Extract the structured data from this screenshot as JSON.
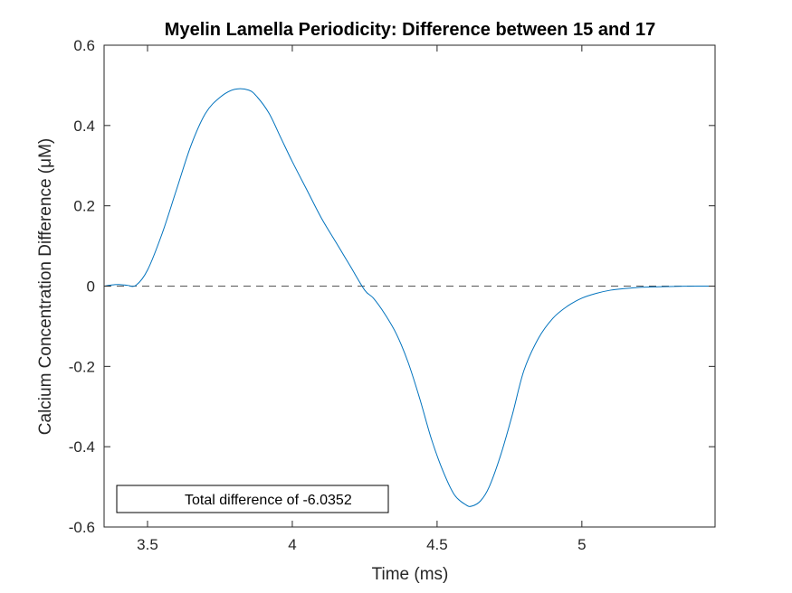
{
  "chart_data": {
    "type": "line",
    "title": "Myelin Lamella Periodicity: Difference between 15 and 17",
    "xlabel": "Time (ms)",
    "ylabel": "Calcium Concentration Difference (μM)",
    "xlim": [
      3.35,
      5.46
    ],
    "ylim": [
      -0.6,
      0.6
    ],
    "xticks": [
      3.5,
      4,
      4.5,
      5
    ],
    "xtick_labels": [
      "3.5",
      "4",
      "4.5",
      "5"
    ],
    "yticks": [
      -0.6,
      -0.4,
      -0.2,
      0,
      0.2,
      0.4,
      0.6
    ],
    "ytick_labels": [
      "-0.6",
      "-0.4",
      "-0.2",
      "0",
      "0.2",
      "0.4",
      "0.6"
    ],
    "grid": false,
    "legend": {
      "text": "Total difference of -6.0352",
      "placement": "bottom-left"
    },
    "reference_line": {
      "y": 0,
      "style": "dashed",
      "color": "#555555"
    },
    "series": [
      {
        "color": "#0072BD",
        "x": [
          3.35,
          3.38,
          3.4,
          3.43,
          3.46,
          3.5,
          3.55,
          3.6,
          3.65,
          3.7,
          3.75,
          3.8,
          3.85,
          3.88,
          3.92,
          3.96,
          4.0,
          4.05,
          4.1,
          4.15,
          4.2,
          4.25,
          4.28,
          4.32,
          4.36,
          4.4,
          4.44,
          4.48,
          4.52,
          4.56,
          4.6,
          4.62,
          4.65,
          4.68,
          4.72,
          4.76,
          4.8,
          4.85,
          4.9,
          4.95,
          5.0,
          5.05,
          5.1,
          5.15,
          5.2,
          5.25,
          5.3,
          5.4,
          5.46
        ],
        "y": [
          0.0,
          0.003,
          0.004,
          0.002,
          0.002,
          0.04,
          0.13,
          0.24,
          0.35,
          0.43,
          0.47,
          0.49,
          0.488,
          0.47,
          0.43,
          0.37,
          0.31,
          0.24,
          0.17,
          0.11,
          0.05,
          -0.01,
          -0.03,
          -0.07,
          -0.12,
          -0.19,
          -0.28,
          -0.38,
          -0.46,
          -0.52,
          -0.545,
          -0.548,
          -0.535,
          -0.5,
          -0.42,
          -0.32,
          -0.21,
          -0.13,
          -0.08,
          -0.05,
          -0.03,
          -0.018,
          -0.01,
          -0.006,
          -0.003,
          -0.002,
          -0.001,
          0.0,
          0.0
        ]
      }
    ]
  }
}
